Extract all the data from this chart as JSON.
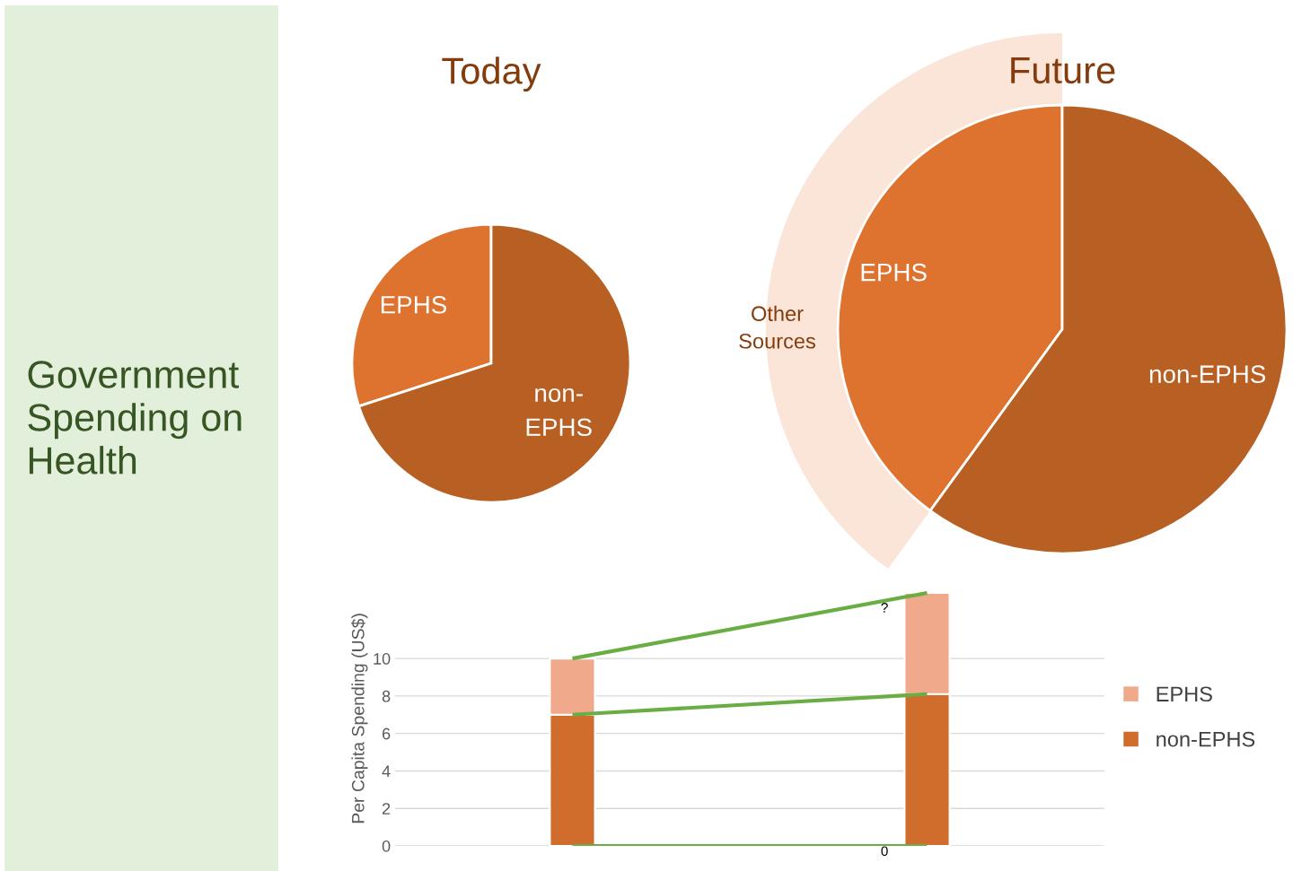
{
  "chart_data": [
    {
      "type": "other",
      "title": "Government Spending on Health"
    },
    {
      "type": "pie",
      "title": "Today",
      "categories": [
        "EPHS",
        "non-EPHS"
      ],
      "values": [
        30,
        70
      ],
      "colors": [
        "#dd732e",
        "#b86023"
      ]
    },
    {
      "type": "pie",
      "title": "Future",
      "categories": [
        "EPHS",
        "non-EPHS"
      ],
      "values": [
        40,
        60
      ],
      "colors": [
        "#dd732e",
        "#b86023"
      ],
      "annotations": [
        "Other Sources"
      ]
    },
    {
      "type": "bar",
      "stacked": true,
      "categories": [
        null,
        null
      ],
      "ylabel": "Per Capita Spending (US$)",
      "ylim": [
        0,
        13.6
      ],
      "yticks": [
        0,
        2,
        4,
        6,
        8,
        10
      ],
      "grid": "y",
      "legend": "right",
      "series": [
        {
          "name": "non-EPHS",
          "color": "#d06d2c",
          "values": [
            7,
            8.1
          ]
        },
        {
          "name": "EPHS",
          "color": "#f0a98a",
          "values": [
            3,
            5.4
          ]
        },
        {
          "type": "line",
          "color": "#6aad45",
          "values": [
            10,
            13.5
          ]
        },
        {
          "type": "line",
          "color": "#6aad45",
          "values": [
            7,
            8.1
          ]
        },
        {
          "type": "line",
          "color": "#6aad45",
          "values": [
            0,
            0
          ]
        }
      ],
      "annotations": [
        "?",
        {
          "text": "0",
          "y": 0
        }
      ]
    }
  ]
}
